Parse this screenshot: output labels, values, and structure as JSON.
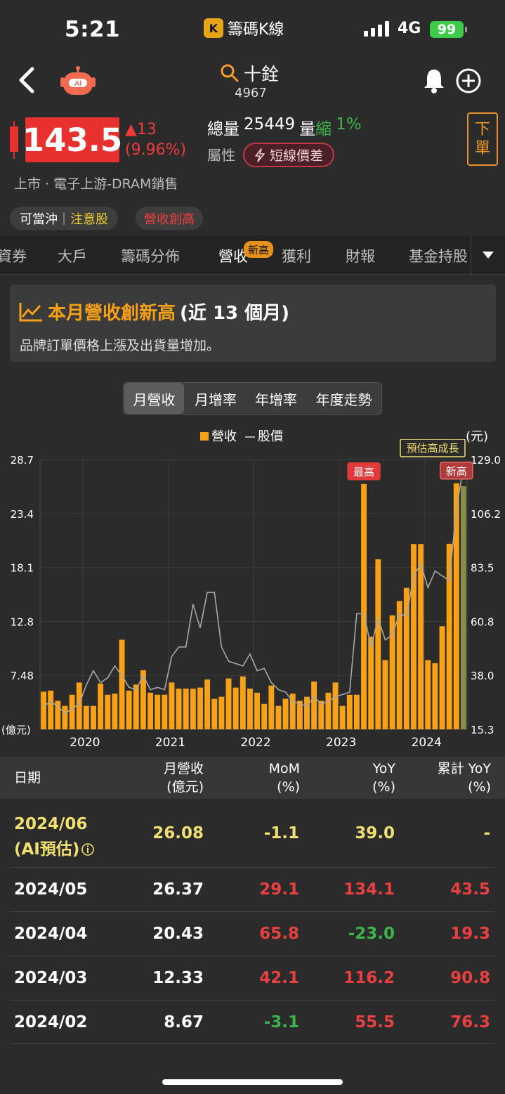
{
  "status_bar": {
    "time": "5:21",
    "app_name": "籌碼K線",
    "network": "4G",
    "battery": "99"
  },
  "header": {
    "stock_name": "十銓",
    "stock_code": "4967"
  },
  "quote": {
    "price": "143.5",
    "change": "▲13",
    "change_pct": "(9.96%)",
    "volume_label": "總量",
    "volume": "25449",
    "volume_unit": "量",
    "volume_trend": "縮",
    "volume_trend_pct": "1%",
    "attr_label": "屬性",
    "attr_tag": "短線價差",
    "market": "上市 · 電子上游-DRAM銷售",
    "order_button": [
      "下",
      "單"
    ]
  },
  "tags": {
    "daytrade": "可當沖",
    "warning": "注意股",
    "revenue_high": "營收創高"
  },
  "tabs": {
    "items": [
      "資券",
      "大戶",
      "籌碼分佈",
      "營收",
      "獲利",
      "財報",
      "基金持股"
    ],
    "active": "營收",
    "badge": "新高"
  },
  "banner": {
    "title_hl": "本月營收創新高",
    "title_rest": "(近 13 個月)",
    "subtitle": "品牌訂單價格上漲及出貨量增加。"
  },
  "segments": [
    "月營收",
    "月增率",
    "年增率",
    "年度走勢"
  ],
  "segment_active": 0,
  "colors": {
    "revenue_bar": "#f6a116",
    "estimate_bar": "#8a8a4a",
    "price_line": "#a8a8a8",
    "up": "#e84040",
    "down": "#3cb44a",
    "estimate_text": "#f0e070"
  },
  "chart_data": {
    "type": "bar",
    "legend": [
      "營收",
      "股價"
    ],
    "left_unit": "(億元)",
    "right_unit": "(元)",
    "y_left_ticks": [
      "28.7",
      "23.4",
      "18.1",
      "12.8",
      "7.48"
    ],
    "y_left_range": [
      2.2,
      28.7
    ],
    "y_right_ticks": [
      "129.0",
      "106.2",
      "83.5",
      "60.8",
      "38.0",
      "15.3"
    ],
    "y_right_range": [
      15.3,
      129.0
    ],
    "x_ticks": [
      "2020",
      "2021",
      "2022",
      "2023",
      "2024"
    ],
    "annotations": {
      "max": "最高",
      "new_high": "新高",
      "estimate": "預估高成長"
    },
    "revenue": [
      5.9,
      6.0,
      5.0,
      4.5,
      5.6,
      6.8,
      4.5,
      4.5,
      6.7,
      5.6,
      5.7,
      11.0,
      6.0,
      6.6,
      8.0,
      5.8,
      5.6,
      5.6,
      6.8,
      6.2,
      6.2,
      6.2,
      6.3,
      7.1,
      5.2,
      5.4,
      7.2,
      6.3,
      7.4,
      6.2,
      5.8,
      4.7,
      6.5,
      4.5,
      5.2,
      5.7,
      5.0,
      5.4,
      6.9,
      5.0,
      5.8,
      6.8,
      4.5,
      5.6,
      5.6,
      26.3,
      11.3,
      18.9,
      9.0,
      13.4,
      14.8,
      16.1,
      20.4,
      20.4,
      9.0,
      8.7,
      12.33,
      20.43,
      26.37,
      26.08
    ],
    "price": [
      25,
      27,
      25,
      22,
      24,
      26,
      34,
      40,
      35,
      37,
      42,
      38,
      33,
      32,
      38,
      32,
      33,
      32,
      46,
      50,
      50,
      68,
      58,
      73,
      73,
      50,
      44,
      43,
      42,
      47,
      40,
      41,
      35,
      32,
      31,
      27,
      26,
      25,
      29,
      26,
      27,
      29,
      30,
      31,
      64,
      64,
      50,
      62,
      53,
      55,
      64,
      63,
      80,
      85,
      75,
      82,
      80,
      78,
      108,
      126
    ]
  },
  "table": {
    "headers": {
      "date": "日期",
      "rev": [
        "月營收",
        "(億元)"
      ],
      "mom": [
        "MoM",
        "(%)"
      ],
      "yoy": [
        "YoY",
        "(%)"
      ],
      "cum": [
        "累計 YoY",
        "(%)"
      ]
    },
    "estimate_row": {
      "date1": "2024/06",
      "date2": "(AI預估)",
      "rev": "26.08",
      "mom": "-1.1",
      "yoy": "39.0",
      "cum": "-"
    },
    "rows": [
      {
        "date": "2024/05",
        "rev": "26.37",
        "mom": "29.1",
        "yoy": "134.1",
        "cum": "43.5"
      },
      {
        "date": "2024/04",
        "rev": "20.43",
        "mom": "65.8",
        "yoy": "-23.0",
        "cum": "19.3"
      },
      {
        "date": "2024/03",
        "rev": "12.33",
        "mom": "42.1",
        "yoy": "116.2",
        "cum": "90.8"
      },
      {
        "date": "2024/02",
        "rev": "8.67",
        "mom": "-3.1",
        "yoy": "55.5",
        "cum": "76.3"
      }
    ]
  }
}
